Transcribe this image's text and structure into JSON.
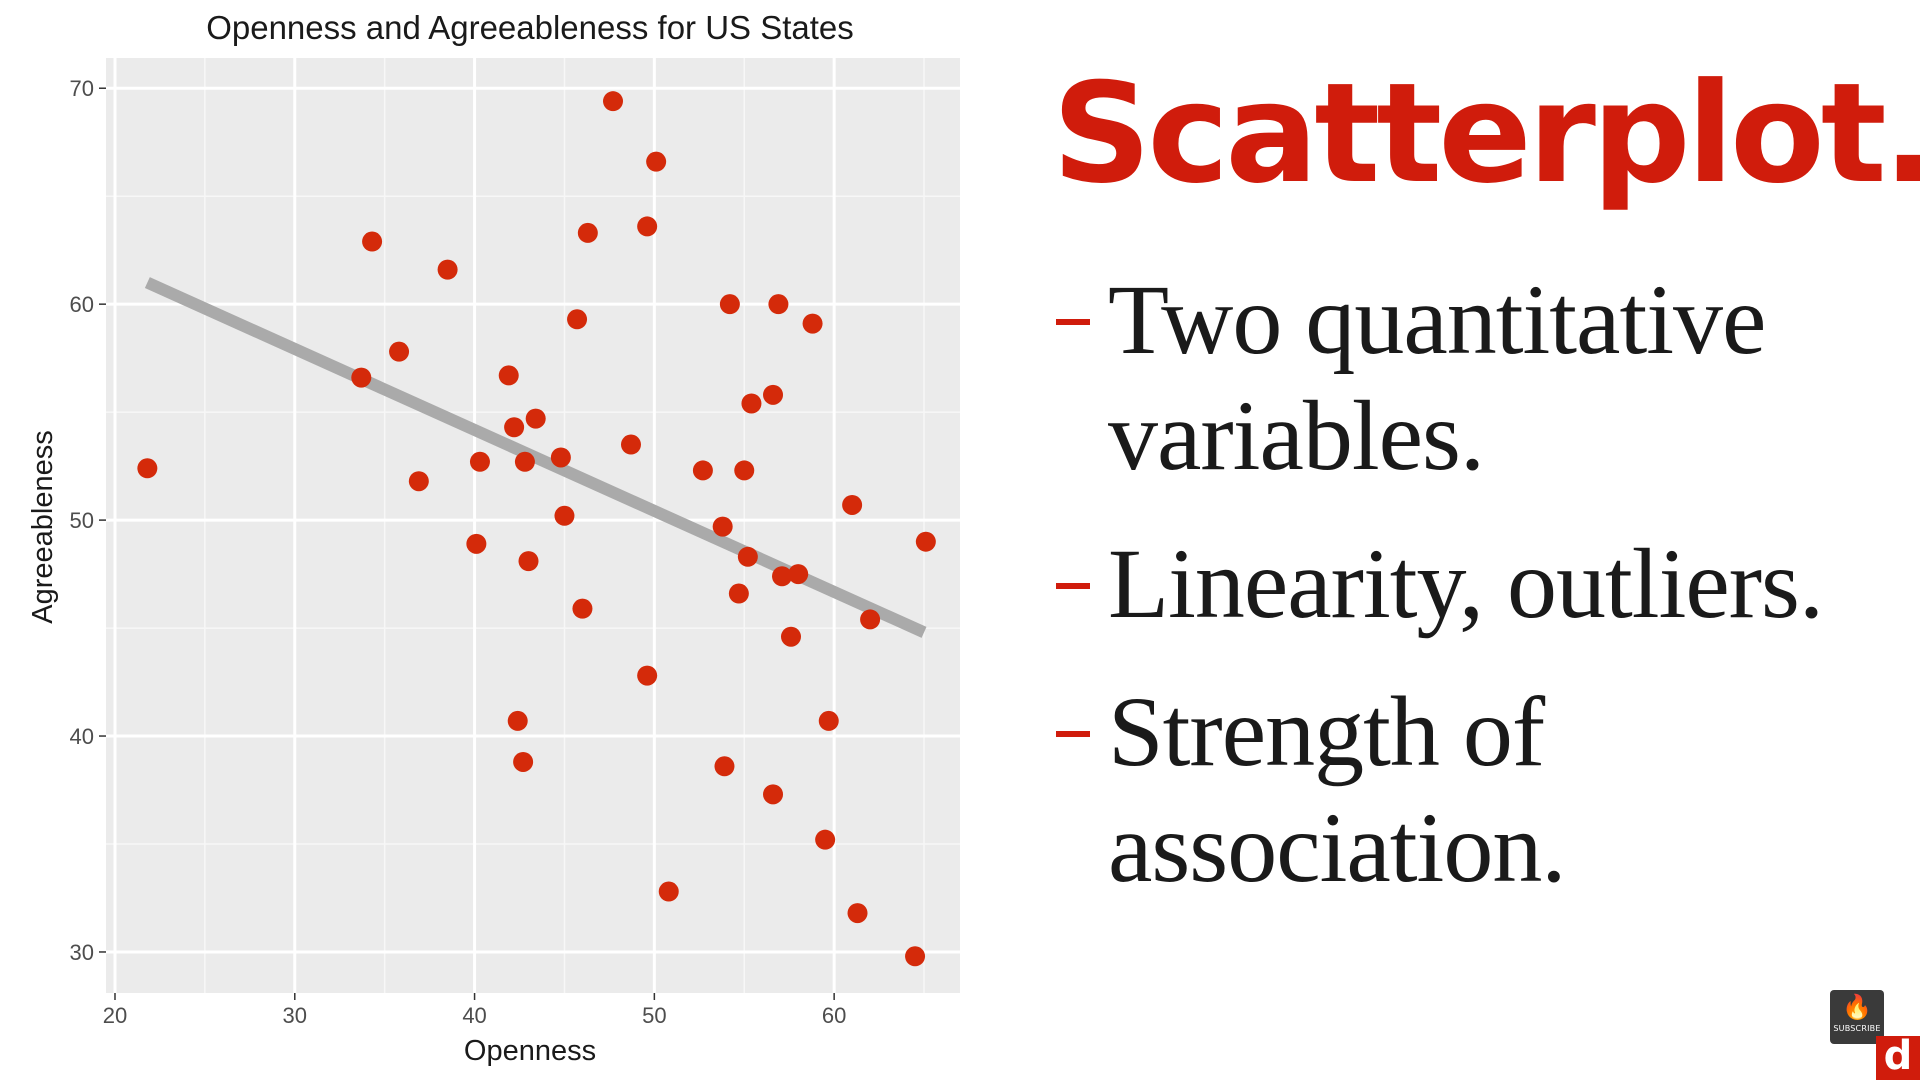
{
  "chart_data": {
    "type": "scatter",
    "title": "Openness and Agreeableness for US States",
    "xlabel": "Openness",
    "ylabel": "Agreeableness",
    "xlim": [
      19.5,
      67
    ],
    "ylim": [
      28.1,
      71.4
    ],
    "xticks": [
      20,
      30,
      40,
      50,
      60
    ],
    "yticks": [
      30,
      40,
      50,
      60,
      70
    ],
    "grid": true,
    "legend": "none",
    "point_color": "#d42a0a",
    "trend_color": "#aaaaaa",
    "panel_color": "#ebebeb",
    "trendline": {
      "x": [
        21.8,
        65
      ],
      "y": [
        61.0,
        44.8
      ]
    },
    "points": [
      {
        "x": 21.8,
        "y": 52.4
      },
      {
        "x": 33.7,
        "y": 56.6
      },
      {
        "x": 34.3,
        "y": 62.9
      },
      {
        "x": 35.8,
        "y": 57.8
      },
      {
        "x": 36.9,
        "y": 51.8
      },
      {
        "x": 38.5,
        "y": 61.6
      },
      {
        "x": 40.1,
        "y": 48.9
      },
      {
        "x": 40.3,
        "y": 52.7
      },
      {
        "x": 41.9,
        "y": 56.7
      },
      {
        "x": 42.2,
        "y": 54.3
      },
      {
        "x": 42.4,
        "y": 40.7
      },
      {
        "x": 42.7,
        "y": 38.8
      },
      {
        "x": 42.8,
        "y": 52.7
      },
      {
        "x": 43.0,
        "y": 48.1
      },
      {
        "x": 43.4,
        "y": 54.7
      },
      {
        "x": 44.8,
        "y": 52.9
      },
      {
        "x": 45.0,
        "y": 50.2
      },
      {
        "x": 45.7,
        "y": 59.3
      },
      {
        "x": 46.0,
        "y": 45.9
      },
      {
        "x": 46.3,
        "y": 63.3
      },
      {
        "x": 47.7,
        "y": 69.4
      },
      {
        "x": 48.7,
        "y": 53.5
      },
      {
        "x": 49.6,
        "y": 63.6
      },
      {
        "x": 49.6,
        "y": 42.8
      },
      {
        "x": 50.1,
        "y": 66.6
      },
      {
        "x": 50.8,
        "y": 32.8
      },
      {
        "x": 52.7,
        "y": 52.3
      },
      {
        "x": 53.8,
        "y": 49.7
      },
      {
        "x": 53.9,
        "y": 38.6
      },
      {
        "x": 54.2,
        "y": 60.0
      },
      {
        "x": 54.7,
        "y": 46.6
      },
      {
        "x": 55.0,
        "y": 52.3
      },
      {
        "x": 55.2,
        "y": 48.3
      },
      {
        "x": 55.4,
        "y": 55.4
      },
      {
        "x": 56.6,
        "y": 37.3
      },
      {
        "x": 56.6,
        "y": 55.8
      },
      {
        "x": 56.9,
        "y": 60.0
      },
      {
        "x": 57.1,
        "y": 47.4
      },
      {
        "x": 57.6,
        "y": 44.6
      },
      {
        "x": 58.0,
        "y": 47.5
      },
      {
        "x": 58.8,
        "y": 59.1
      },
      {
        "x": 59.5,
        "y": 35.2
      },
      {
        "x": 59.7,
        "y": 40.7
      },
      {
        "x": 61.0,
        "y": 50.7
      },
      {
        "x": 61.3,
        "y": 31.8
      },
      {
        "x": 62.0,
        "y": 45.4
      },
      {
        "x": 64.5,
        "y": 29.8
      },
      {
        "x": 65.1,
        "y": 49.0
      }
    ]
  },
  "slide": {
    "heading": "Scatterplot.",
    "heading_color": "#d01c0c",
    "bullets": [
      {
        "text": "Two quantitative variables."
      },
      {
        "text": "Linearity, outliers."
      },
      {
        "text": "Strength of association."
      }
    ]
  },
  "badges": {
    "subscribe_label": "SUBSCRIBE",
    "subscribe_icon": "fire-icon",
    "logo_text": "d",
    "logo_icon": "brand-logo-icon"
  }
}
